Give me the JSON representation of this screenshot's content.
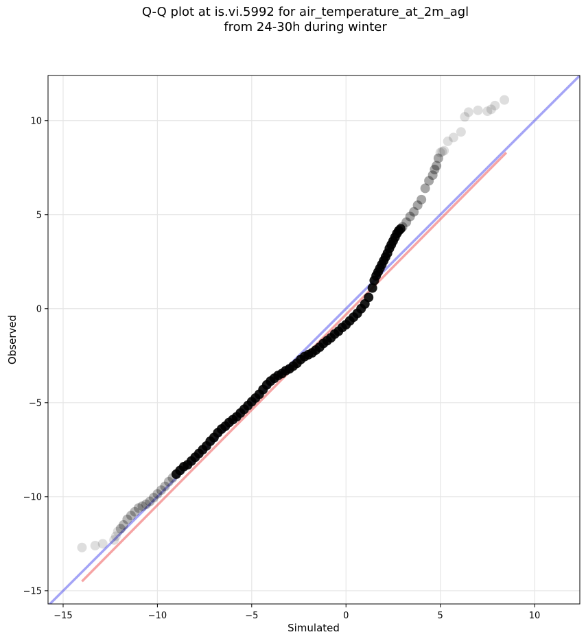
{
  "title_lines": [
    "Q-Q plot at is.vi.5992 for air_temperature_at_2m_agl",
    "from 24-30h during winter"
  ],
  "chart_data": {
    "type": "scatter",
    "title": "Q-Q plot at is.vi.5992 for air_temperature_at_2m_agl\nfrom 24-30h during winter",
    "xlabel": "Simulated",
    "ylabel": "Observed",
    "xlim": [
      -15.8,
      12.4
    ],
    "ylim": [
      -15.7,
      12.4
    ],
    "xticks": [
      -15,
      -10,
      -5,
      0,
      5,
      10
    ],
    "yticks": [
      -15,
      -10,
      -5,
      0,
      5,
      10
    ],
    "xtick_labels": [
      "−15",
      "−10",
      "−5",
      "0",
      "5",
      "10"
    ],
    "ytick_labels": [
      "−15",
      "−10",
      "−5",
      "0",
      "5",
      "10"
    ],
    "grid": true,
    "colors": {
      "points": "#000000",
      "identity_line": "#4a4aee",
      "fit_line": "#ee4a4a",
      "grid": "#e6e6e6"
    },
    "identity_line": {
      "x": [
        -15.8,
        12.4
      ],
      "y": [
        -15.8,
        12.4
      ]
    },
    "fit_line": {
      "x": [
        -14.0,
        8.5
      ],
      "y": [
        -14.5,
        8.3
      ]
    },
    "points": {
      "x": [
        -14.0,
        -13.3,
        -12.9,
        -12.3,
        -12.2,
        -12.1,
        -11.95,
        -11.8,
        -11.6,
        -11.4,
        -11.2,
        -11.0,
        -10.8,
        -10.6,
        -10.4,
        -10.2,
        -10.0,
        -9.8,
        -9.6,
        -9.4,
        -9.2,
        -9.0,
        -8.8,
        -8.6,
        -8.4,
        -8.2,
        -8.0,
        -7.8,
        -7.6,
        -7.4,
        -7.2,
        -7.0,
        -6.8,
        -6.6,
        -6.4,
        -6.2,
        -6.0,
        -5.8,
        -5.6,
        -5.4,
        -5.2,
        -5.0,
        -4.8,
        -4.6,
        -4.4,
        -4.2,
        -4.0,
        -3.8,
        -3.6,
        -3.4,
        -3.2,
        -3.0,
        -2.8,
        -2.6,
        -2.4,
        -2.2,
        -2.0,
        -1.8,
        -1.6,
        -1.4,
        -1.2,
        -1.0,
        -0.8,
        -0.6,
        -0.4,
        -0.2,
        0.0,
        0.2,
        0.4,
        0.6,
        0.8,
        1.0,
        1.2,
        1.4,
        1.5,
        1.6,
        1.7,
        1.8,
        1.9,
        2.0,
        2.1,
        2.2,
        2.3,
        2.4,
        2.5,
        2.6,
        2.7,
        2.8,
        2.9,
        3.0,
        3.2,
        3.4,
        3.6,
        3.8,
        4.0,
        4.2,
        4.4,
        4.6,
        4.7,
        4.8,
        4.9,
        5.0,
        5.1,
        5.2,
        5.4,
        5.7,
        6.1,
        6.3,
        6.5,
        7.0,
        7.5,
        7.7,
        7.9,
        8.4
      ],
      "y": [
        -12.7,
        -12.6,
        -12.5,
        -12.3,
        -12.1,
        -11.85,
        -11.7,
        -11.5,
        -11.2,
        -11.0,
        -10.8,
        -10.6,
        -10.5,
        -10.4,
        -10.25,
        -10.05,
        -9.85,
        -9.65,
        -9.45,
        -9.2,
        -9.0,
        -8.8,
        -8.6,
        -8.4,
        -8.3,
        -8.1,
        -7.9,
        -7.7,
        -7.5,
        -7.3,
        -7.05,
        -6.85,
        -6.6,
        -6.4,
        -6.25,
        -6.05,
        -5.9,
        -5.75,
        -5.55,
        -5.35,
        -5.15,
        -4.95,
        -4.75,
        -4.55,
        -4.3,
        -4.05,
        -3.85,
        -3.7,
        -3.55,
        -3.45,
        -3.3,
        -3.2,
        -3.05,
        -2.9,
        -2.7,
        -2.55,
        -2.45,
        -2.35,
        -2.2,
        -2.05,
        -1.85,
        -1.7,
        -1.55,
        -1.35,
        -1.2,
        -1.0,
        -0.85,
        -0.65,
        -0.45,
        -0.25,
        0.0,
        0.25,
        0.6,
        1.1,
        1.5,
        1.75,
        1.95,
        2.15,
        2.35,
        2.55,
        2.75,
        2.95,
        3.2,
        3.4,
        3.6,
        3.8,
        4.0,
        4.15,
        4.25,
        4.35,
        4.6,
        4.9,
        5.15,
        5.5,
        5.8,
        6.4,
        6.8,
        7.1,
        7.4,
        7.6,
        8.0,
        8.3,
        8.35,
        8.4,
        8.9,
        9.1,
        9.4,
        10.2,
        10.45,
        10.55,
        10.5,
        10.6,
        10.8,
        11.1
      ]
    }
  }
}
